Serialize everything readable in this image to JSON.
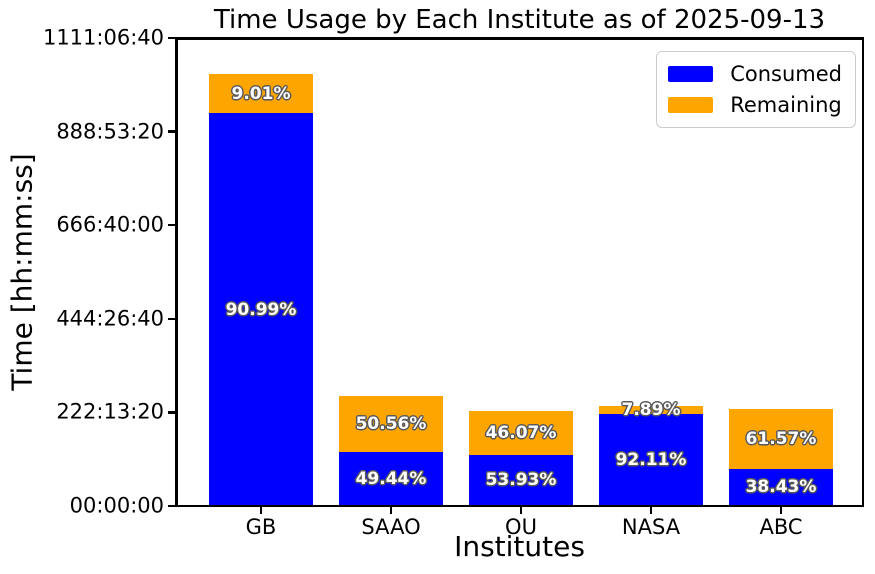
{
  "chart_data": {
    "type": "bar",
    "stacked": true,
    "title": "Time Usage by Each Institute as of 2025-09-13",
    "xlabel": "Institutes",
    "ylabel": "Time [hh:mm:ss]",
    "categories": [
      "GB",
      "SAAO",
      "OU",
      "NASA",
      "ABC"
    ],
    "series": [
      {
        "name": "Consumed",
        "color": "#0000ff",
        "percent_labels": [
          "90.99%",
          "49.44%",
          "53.93%",
          "92.11%",
          "38.43%"
        ],
        "values_seconds_est": [
          3357531,
          464736,
          437912,
          787541,
          320122
        ]
      },
      {
        "name": "Remaining",
        "color": "#ffa500",
        "percent_labels": [
          "9.01%",
          "50.56%",
          "46.07%",
          "7.89%",
          "61.57%"
        ],
        "values_seconds_est": [
          332469,
          475264,
          374088,
          67459,
          512878
        ]
      }
    ],
    "totals_seconds_est": [
      3690000,
      940000,
      812000,
      855000,
      833000
    ],
    "y_axis": {
      "tick_labels": [
        "00:00:00",
        "222:13:20",
        "444:26:40",
        "666:40:00",
        "888:53:20",
        "1111:06:40"
      ],
      "tick_seconds": [
        0,
        800000,
        1600000,
        2400000,
        3200000,
        4000000
      ],
      "max_seconds": 4000000
    },
    "legend": {
      "position": "upper right"
    },
    "grid": false,
    "bar_label_text_color": "#ffffff",
    "bar_label_outline_color": "#595959",
    "axis_color": "#000000",
    "background_color": "#ffffff"
  }
}
